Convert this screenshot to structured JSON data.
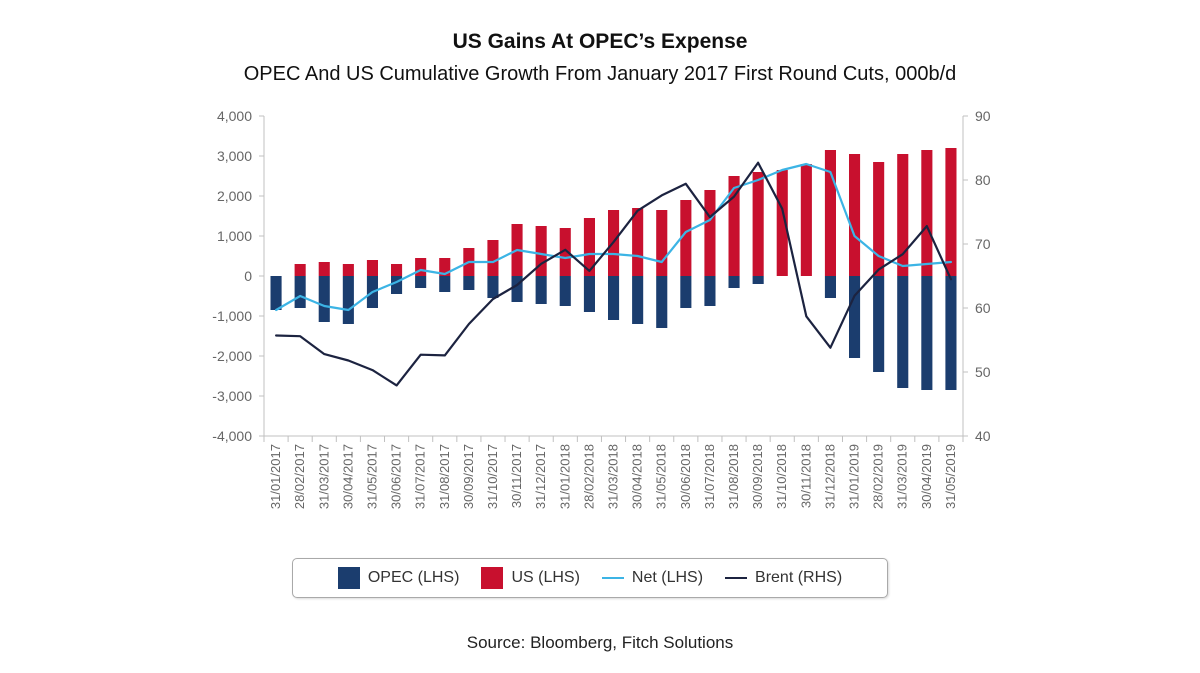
{
  "chart_data": {
    "type": "bar",
    "title": "US Gains At OPEC’s Expense",
    "subtitle": "OPEC And US Cumulative Growth From January 2017 First Round Cuts, 000b/d",
    "source": "Source: Bloomberg, Fitch Solutions",
    "categories": [
      "31/01/2017",
      "28/02/2017",
      "31/03/2017",
      "30/04/2017",
      "31/05/2017",
      "30/06/2017",
      "31/07/2017",
      "31/08/2017",
      "30/09/2017",
      "31/10/2017",
      "30/11/2017",
      "31/12/2017",
      "31/01/2018",
      "28/02/2018",
      "31/03/2018",
      "30/04/2018",
      "31/05/2018",
      "30/06/2018",
      "31/07/2018",
      "31/08/2018",
      "30/09/2018",
      "31/10/2018",
      "30/11/2018",
      "31/12/2018",
      "31/01/2019",
      "28/02/2019",
      "31/03/2019",
      "30/04/2019",
      "31/05/2019"
    ],
    "y_left_ticks": [
      "4,000",
      "3,000",
      "2,000",
      "1,000",
      "0",
      "-1,000",
      "-2,000",
      "-3,000",
      "-4,000"
    ],
    "y_right_ticks": [
      "90",
      "80",
      "70",
      "60",
      "50",
      "40"
    ],
    "y_left_range": [
      -4000,
      4000
    ],
    "y_right_range": [
      40,
      90
    ],
    "grid": false,
    "legend_position": "bottom",
    "series": [
      {
        "name": "OPEC (LHS)",
        "kind": "bar",
        "axis": "left",
        "color": "#1b3d6e",
        "values": [
          -850,
          -800,
          -1150,
          -1200,
          -800,
          -450,
          -300,
          -400,
          -350,
          -550,
          -650,
          -700,
          -750,
          -900,
          -1100,
          -1200,
          -1300,
          -800,
          -750,
          -300,
          -200,
          0,
          0,
          -550,
          -2050,
          -2400,
          -2800,
          -2850,
          -2850
        ]
      },
      {
        "name": "US (LHS)",
        "kind": "bar",
        "axis": "left",
        "color": "#c8102e",
        "values": [
          0,
          300,
          350,
          300,
          400,
          300,
          450,
          450,
          700,
          900,
          1300,
          1250,
          1200,
          1450,
          1650,
          1700,
          1650,
          1900,
          2150,
          2500,
          2600,
          2650,
          2800,
          3150,
          3050,
          2850,
          3050,
          3150,
          3200
        ]
      },
      {
        "name": "Net (LHS)",
        "kind": "line",
        "axis": "left",
        "color": "#3cb4e5",
        "values": [
          -850,
          -500,
          -750,
          -850,
          -400,
          -150,
          150,
          50,
          350,
          350,
          650,
          550,
          450,
          550,
          550,
          500,
          350,
          1100,
          1400,
          2200,
          2400,
          2650,
          2800,
          2600,
          1000,
          500,
          250,
          300,
          350
        ]
      },
      {
        "name": "Brent (RHS)",
        "kind": "line",
        "axis": "right",
        "color": "#1c2340",
        "values": [
          55.7,
          55.6,
          52.8,
          51.8,
          50.3,
          47.9,
          52.7,
          52.6,
          57.5,
          61.4,
          63.6,
          66.9,
          69.1,
          65.8,
          70.3,
          75.2,
          77.6,
          79.4,
          74.2,
          77.4,
          82.7,
          75.5,
          58.7,
          53.8,
          61.9,
          66.0,
          68.4,
          72.8,
          64.5
        ]
      }
    ]
  }
}
